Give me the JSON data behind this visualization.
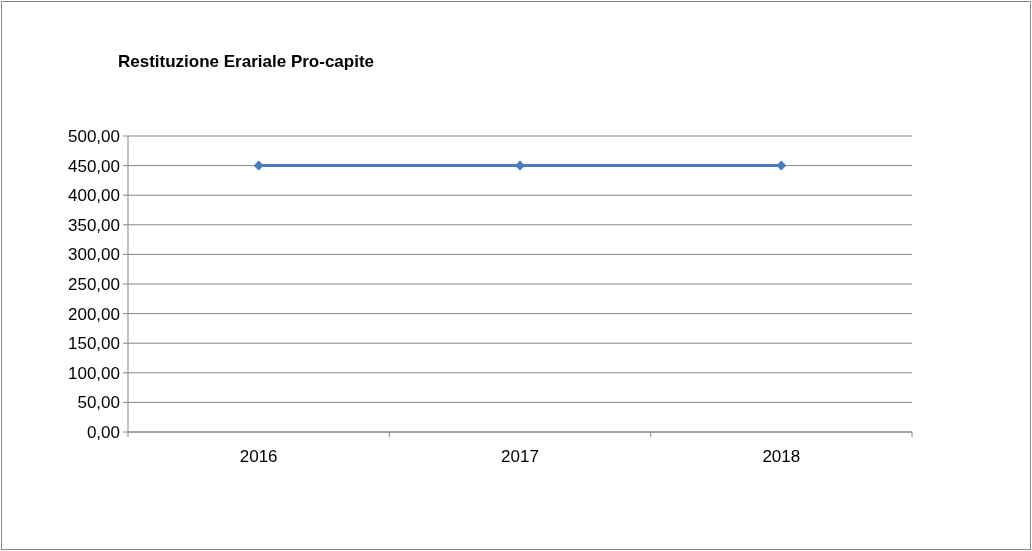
{
  "chart_data": {
    "type": "line",
    "title": "Restituzione Erariale Pro-capite",
    "categories": [
      "2016",
      "2017",
      "2018"
    ],
    "series": [
      {
        "color": "#4a7ebb",
        "values": [
          450,
          450,
          450
        ]
      }
    ],
    "ylim": [
      0,
      500
    ],
    "yticks": [
      {
        "value": 0,
        "label": "0,00"
      },
      {
        "value": 50,
        "label": "50,00"
      },
      {
        "value": 100,
        "label": "100,00"
      },
      {
        "value": 150,
        "label": "150,00"
      },
      {
        "value": 200,
        "label": "200,00"
      },
      {
        "value": 250,
        "label": "250,00"
      },
      {
        "value": 300,
        "label": "300,00"
      },
      {
        "value": 350,
        "label": "350,00"
      },
      {
        "value": 400,
        "label": "400,00"
      },
      {
        "value": 450,
        "label": "450,00"
      },
      {
        "value": 500,
        "label": "500,00"
      }
    ],
    "grid": "y",
    "marker": "diamond",
    "line_style": "solid"
  }
}
